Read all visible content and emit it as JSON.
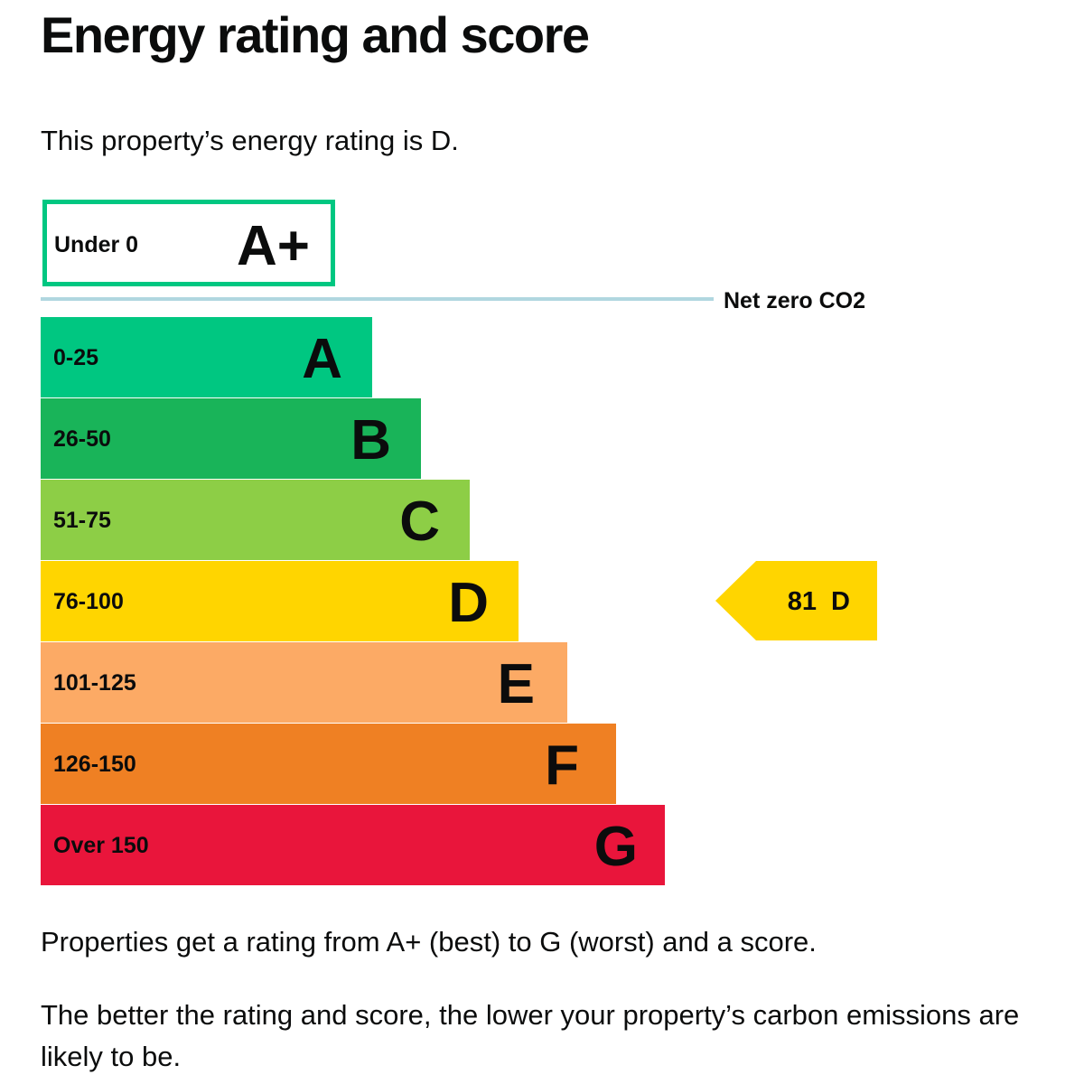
{
  "page": {
    "title": "Energy rating and score",
    "intro": "This property’s energy rating is D.",
    "footer_1": "Properties get a rating from A+ (best) to G (worst) and a score.",
    "footer_2": "The better the rating and score, the lower your property’s carbon emissions are likely to be."
  },
  "chart_data": {
    "type": "bar",
    "orientation": "horizontal",
    "bands": [
      {
        "letter": "A+",
        "range": "Under 0",
        "color": "#ffffff",
        "border": "#00c781"
      },
      {
        "letter": "A",
        "range": "0-25",
        "color": "#00c781"
      },
      {
        "letter": "B",
        "range": "26-50",
        "color": "#19b459"
      },
      {
        "letter": "C",
        "range": "51-75",
        "color": "#8dce46"
      },
      {
        "letter": "D",
        "range": "76-100",
        "color": "#ffd500"
      },
      {
        "letter": "E",
        "range": "101-125",
        "color": "#fcaa65"
      },
      {
        "letter": "F",
        "range": "126-150",
        "color": "#ef8023"
      },
      {
        "letter": "G",
        "range": "Over 150",
        "color": "#e9153b"
      }
    ],
    "net_zero_label": "Net zero CO2",
    "net_zero_color": "#b1d7e0",
    "current": {
      "score": "81",
      "letter": "D",
      "color": "#ffd500"
    }
  }
}
